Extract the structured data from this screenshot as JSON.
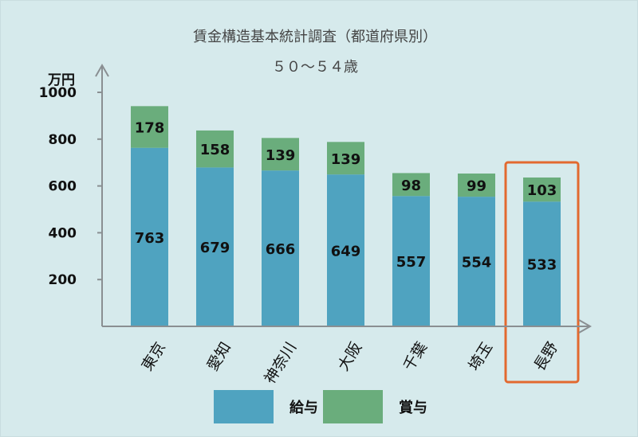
{
  "chart_data": {
    "type": "bar",
    "stacked": true,
    "title": "賃金構造基本統計調査（都道府県別）",
    "subtitle": "５０～５４歳",
    "y_unit": "万円",
    "ylim": [
      0,
      1000
    ],
    "y_ticks": [
      "200",
      "400",
      "600",
      "800",
      "1000"
    ],
    "categories": [
      "東京",
      "愛知",
      "神奈川",
      "大阪",
      "千葉",
      "埼玉",
      "長野"
    ],
    "series": [
      {
        "name": "給与",
        "color": "#4fa3c0",
        "values": [
          763,
          679,
          666,
          649,
          557,
          554,
          533
        ]
      },
      {
        "name": "賞与",
        "color": "#6aad7c",
        "values": [
          178,
          158,
          139,
          139,
          98,
          99,
          103
        ]
      }
    ],
    "highlight": {
      "category": "長野",
      "color": "#e2692f"
    },
    "legend_position": "bottom"
  }
}
